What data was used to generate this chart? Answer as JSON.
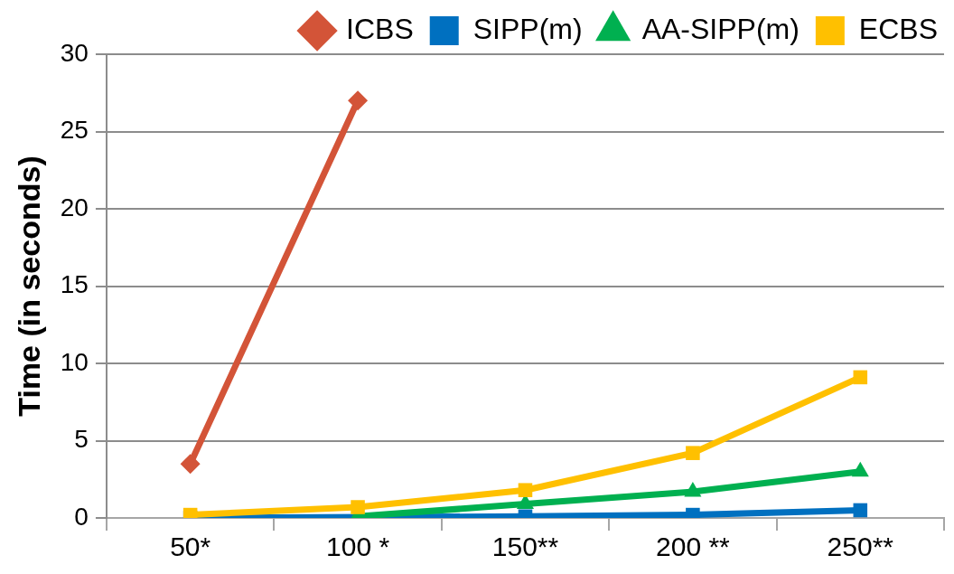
{
  "chart_data": {
    "type": "line",
    "ylabel": "Time (in seconds)",
    "categories": [
      "50*",
      "100 *",
      "150**",
      "200 **",
      "250**"
    ],
    "series": [
      {
        "name": "ICBS",
        "color": "#d35438",
        "marker": "diamond",
        "values": [
          3.5,
          27,
          null,
          null,
          null
        ]
      },
      {
        "name": "SIPP(m)",
        "color": "#0070c0",
        "marker": "square",
        "values": [
          0,
          null,
          0.1,
          0.2,
          0.5
        ]
      },
      {
        "name": "AA-SIPP(m)",
        "color": "#00b050",
        "marker": "triangle",
        "values": [
          null,
          0.1,
          0.9,
          1.7,
          3.0
        ]
      },
      {
        "name": "ECBS",
        "color": "#ffc000",
        "marker": "square",
        "values": [
          0.2,
          0.7,
          1.8,
          4.2,
          9.1
        ]
      }
    ],
    "ylim": [
      0,
      30
    ],
    "yticks": [
      0,
      5,
      10,
      15,
      20,
      25,
      30
    ],
    "grid": "y",
    "legend": "top"
  }
}
